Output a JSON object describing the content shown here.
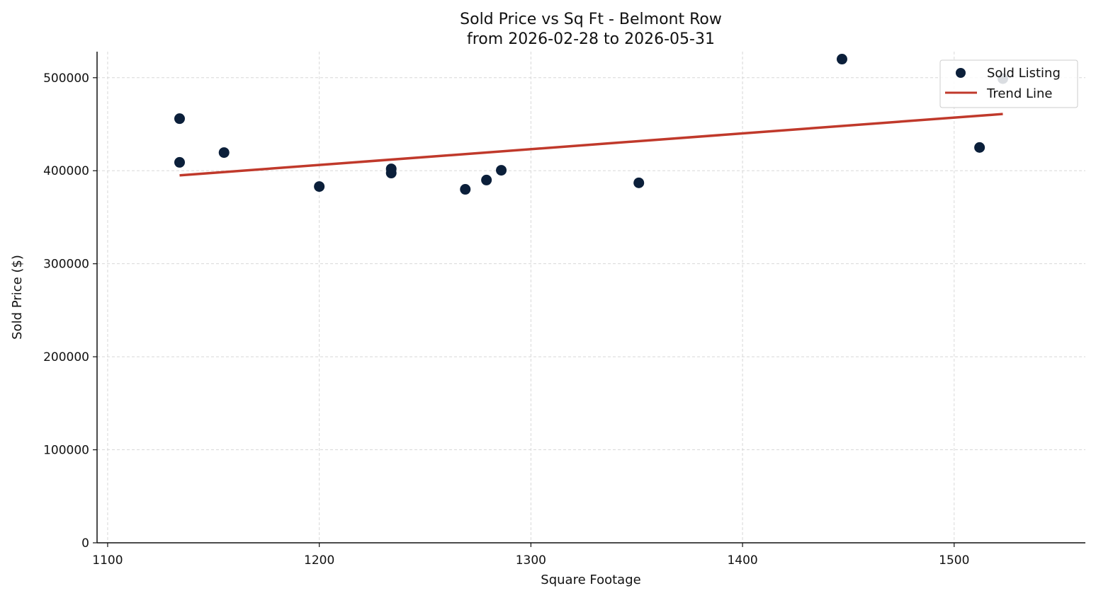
{
  "chart_data": {
    "type": "scatter",
    "title": "Sold Price vs Sq Ft - Belmont Row",
    "subtitle": "from 2026-02-28 to 2026-05-31",
    "xlabel": "Square Footage",
    "ylabel": "Sold Price ($)",
    "xlim": [
      1095,
      1562
    ],
    "ylim": [
      0,
      528000
    ],
    "xticks": [
      1100,
      1200,
      1300,
      1400,
      1500
    ],
    "yticks": [
      0,
      100000,
      200000,
      300000,
      400000,
      500000
    ],
    "grid": true,
    "legend_position": "top-right",
    "series": [
      {
        "name": "Sold Listing",
        "kind": "scatter",
        "color": "#0b1f3a",
        "points": [
          {
            "x": 1134,
            "y": 456000
          },
          {
            "x": 1134,
            "y": 409000
          },
          {
            "x": 1155,
            "y": 419500
          },
          {
            "x": 1200,
            "y": 383000
          },
          {
            "x": 1234,
            "y": 402000
          },
          {
            "x": 1234,
            "y": 397500
          },
          {
            "x": 1269,
            "y": 380000
          },
          {
            "x": 1279,
            "y": 390000
          },
          {
            "x": 1286,
            "y": 400500
          },
          {
            "x": 1351,
            "y": 387000
          },
          {
            "x": 1447,
            "y": 520000
          },
          {
            "x": 1512,
            "y": 425000
          },
          {
            "x": 1523,
            "y": 499000
          }
        ]
      },
      {
        "name": "Trend Line",
        "kind": "line",
        "color": "#c0392b",
        "points": [
          {
            "x": 1134,
            "y": 395000
          },
          {
            "x": 1523,
            "y": 461000
          }
        ]
      }
    ]
  }
}
